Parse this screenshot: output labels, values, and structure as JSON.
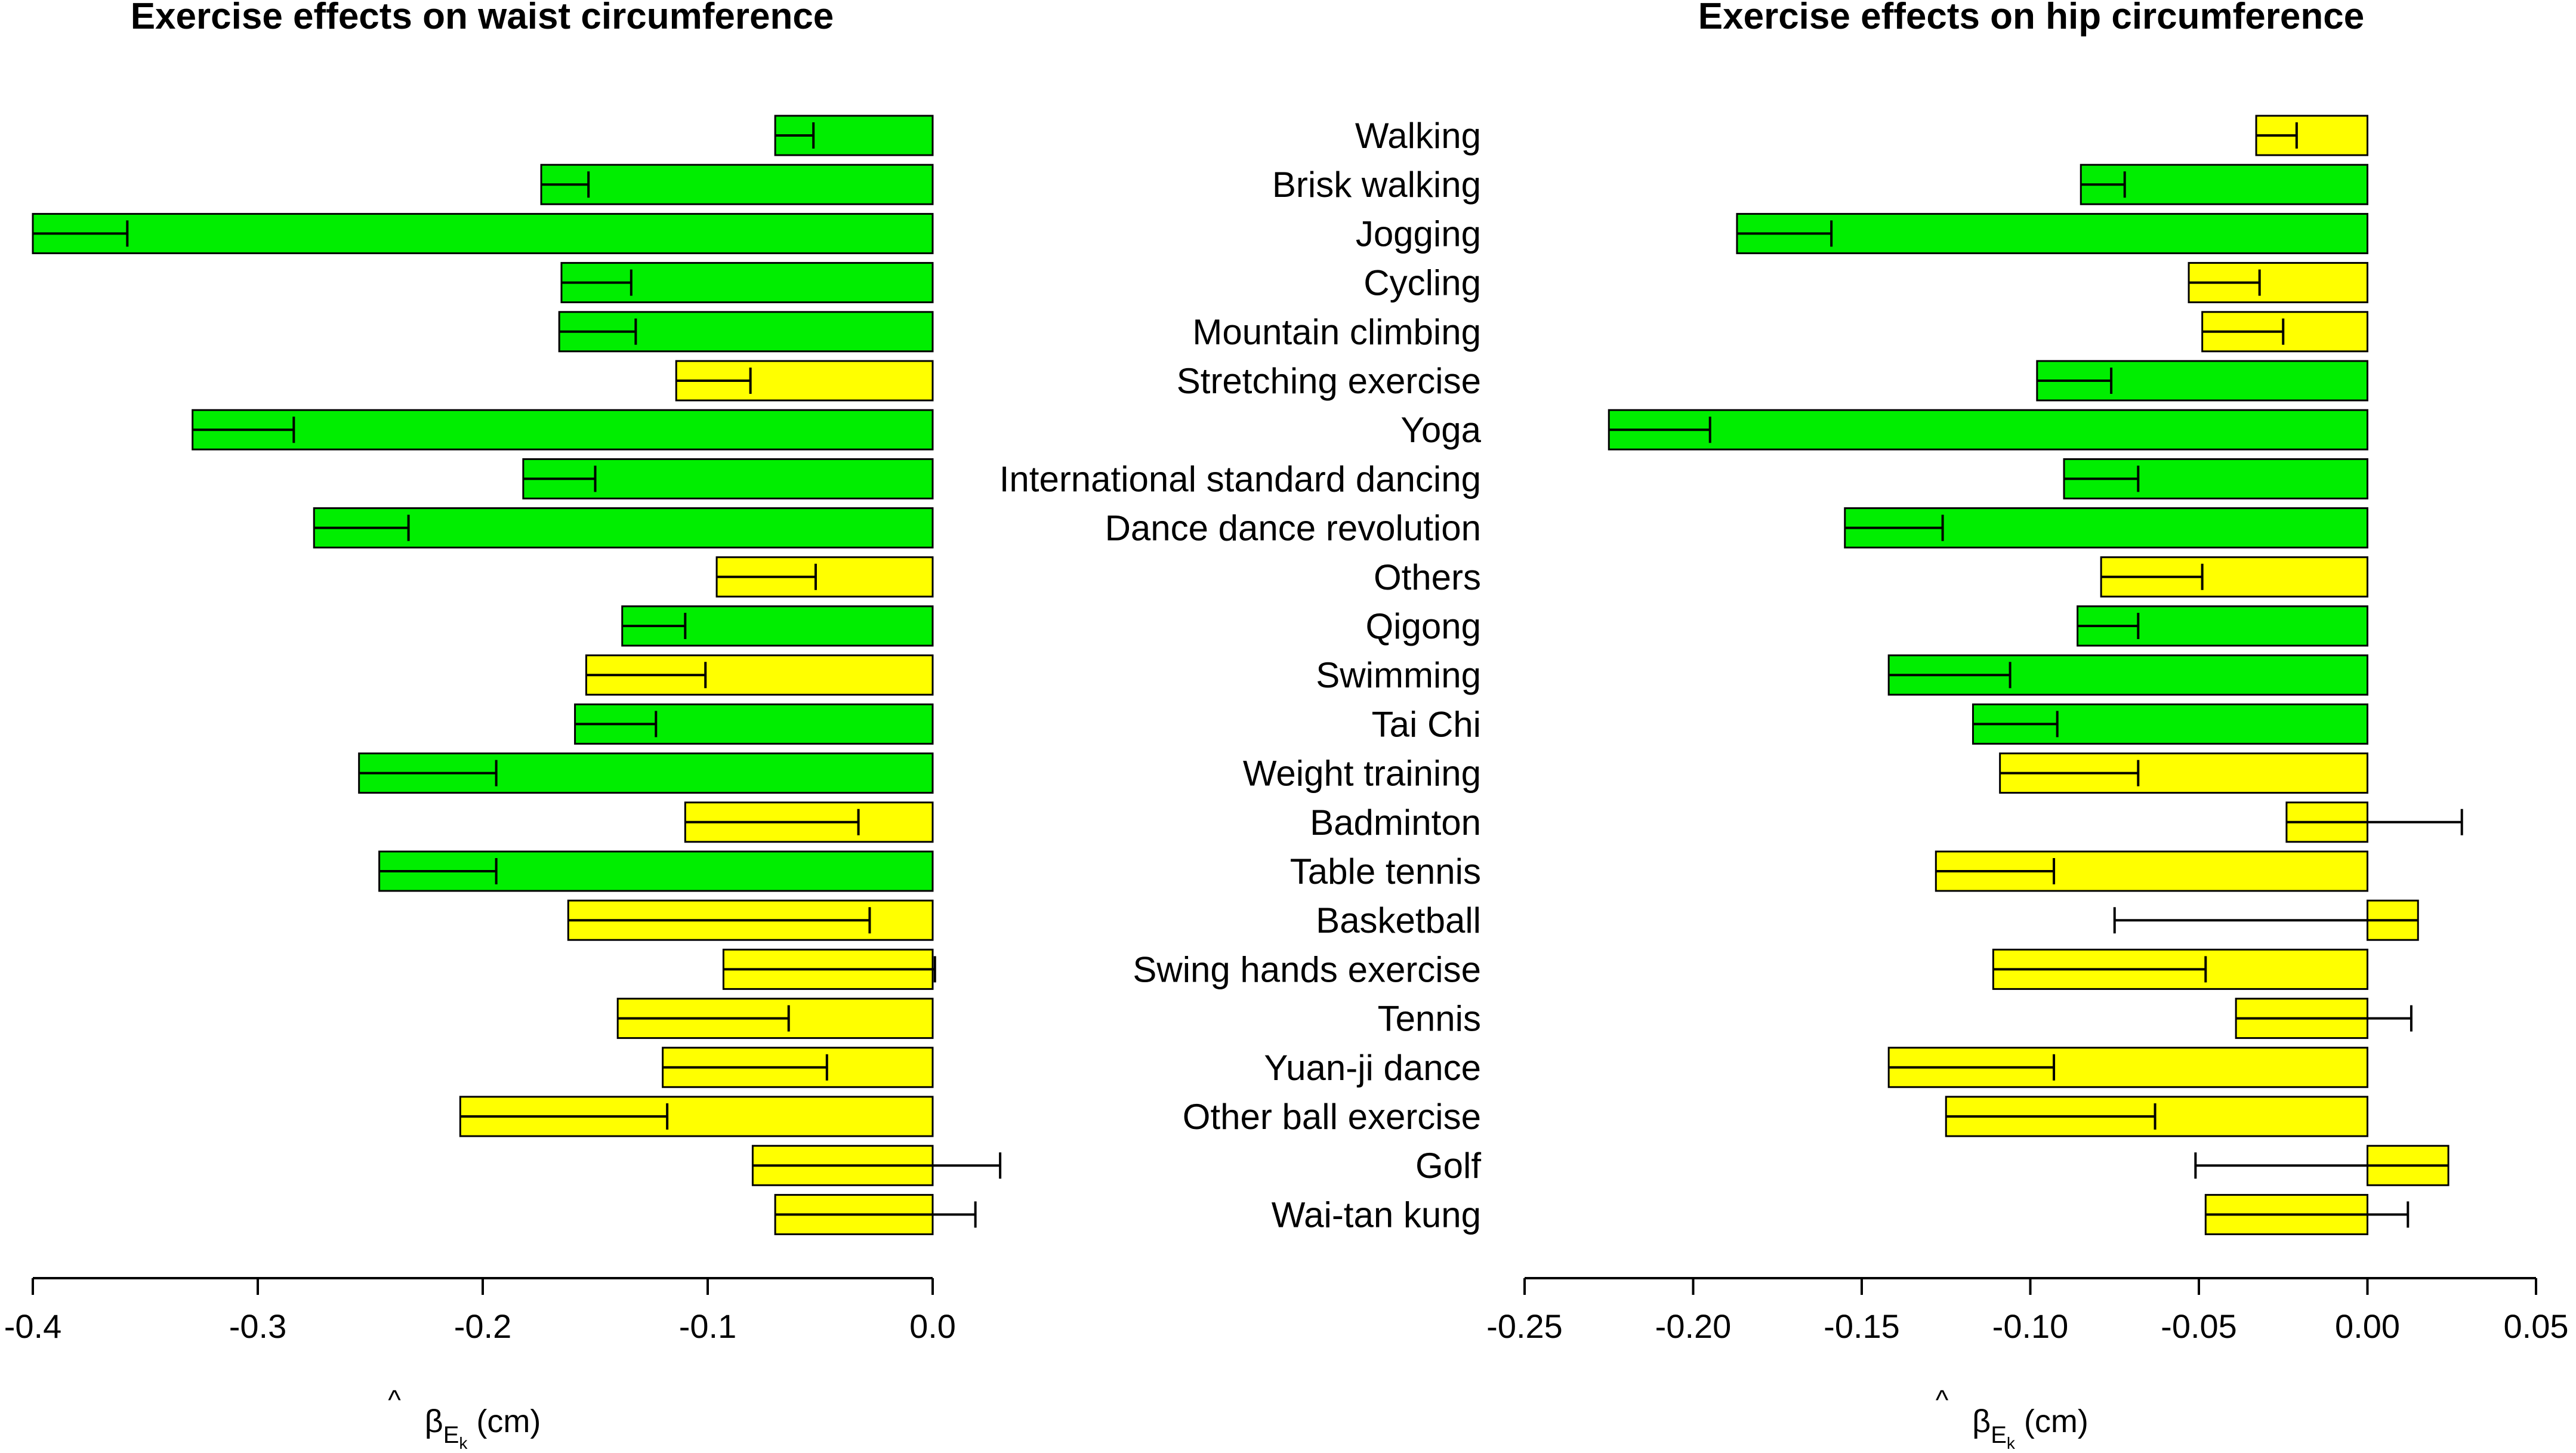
{
  "chart_data": [
    {
      "type": "bar",
      "orientation": "horizontal",
      "title": "Exercise effects on waist circumference",
      "xlabel": {
        "symbol": "β",
        "hat": "^",
        "subscript": "E",
        "subsubscript": "k",
        "unit": "(cm)"
      },
      "xlim": [
        -0.4,
        0.0
      ],
      "xticks": [
        -0.4,
        -0.3,
        -0.2,
        -0.1,
        0.0
      ],
      "xtick_labels": [
        "-0.4",
        "-0.3",
        "-0.2",
        "-0.1",
        "0.0"
      ],
      "bars": [
        {
          "category": "Walking",
          "value": -0.07,
          "error_end": -0.053,
          "color": "green"
        },
        {
          "category": "Brisk walking",
          "value": -0.174,
          "error_end": -0.153,
          "color": "green"
        },
        {
          "category": "Jogging",
          "value": -0.4,
          "error_end": -0.358,
          "color": "green"
        },
        {
          "category": "Cycling",
          "value": -0.165,
          "error_end": -0.134,
          "color": "green"
        },
        {
          "category": "Mountain climbing",
          "value": -0.166,
          "error_end": -0.132,
          "color": "green"
        },
        {
          "category": "Stretching exercise",
          "value": -0.114,
          "error_end": -0.081,
          "color": "yellow"
        },
        {
          "category": "Yoga",
          "value": -0.329,
          "error_end": -0.284,
          "color": "green"
        },
        {
          "category": "International standard dancing",
          "value": -0.182,
          "error_end": -0.15,
          "color": "green"
        },
        {
          "category": "Dance dance revolution",
          "value": -0.275,
          "error_end": -0.233,
          "color": "green"
        },
        {
          "category": "Others",
          "value": -0.096,
          "error_end": -0.052,
          "color": "yellow"
        },
        {
          "category": "Qigong",
          "value": -0.138,
          "error_end": -0.11,
          "color": "green"
        },
        {
          "category": "Swimming",
          "value": -0.154,
          "error_end": -0.101,
          "color": "yellow"
        },
        {
          "category": "Tai Chi",
          "value": -0.159,
          "error_end": -0.123,
          "color": "green"
        },
        {
          "category": "Weight training",
          "value": -0.255,
          "error_end": -0.194,
          "color": "green"
        },
        {
          "category": "Badminton",
          "value": -0.11,
          "error_end": -0.033,
          "color": "yellow"
        },
        {
          "category": "Table tennis",
          "value": -0.246,
          "error_end": -0.194,
          "color": "green"
        },
        {
          "category": "Basketball",
          "value": -0.162,
          "error_end": -0.028,
          "color": "yellow"
        },
        {
          "category": "Swing hands exercise",
          "value": -0.093,
          "error_end": 0.001,
          "color": "yellow"
        },
        {
          "category": "Tennis",
          "value": -0.14,
          "error_end": -0.064,
          "color": "yellow"
        },
        {
          "category": "Yuan-ji dance",
          "value": -0.12,
          "error_end": -0.047,
          "color": "yellow"
        },
        {
          "category": "Other ball exercise",
          "value": -0.21,
          "error_end": -0.118,
          "color": "yellow"
        },
        {
          "category": "Golf",
          "value": -0.08,
          "error_end": 0.03,
          "color": "yellow"
        },
        {
          "category": "Wai-tan kung",
          "value": -0.07,
          "error_end": 0.019,
          "color": "yellow"
        }
      ]
    },
    {
      "type": "bar",
      "orientation": "horizontal",
      "title": "Exercise effects on hip circumference",
      "xlabel": {
        "symbol": "β",
        "hat": "^",
        "subscript": "E",
        "subsubscript": "k",
        "unit": "(cm)"
      },
      "xlim": [
        -0.25,
        0.05
      ],
      "xticks": [
        -0.25,
        -0.2,
        -0.15,
        -0.1,
        -0.05,
        0.0,
        0.05
      ],
      "xtick_labels": [
        "-0.25",
        "-0.20",
        "-0.15",
        "-0.10",
        "-0.05",
        "0.00",
        "0.05"
      ],
      "bars": [
        {
          "category": "Walking",
          "value": -0.033,
          "error_end": -0.021,
          "color": "yellow"
        },
        {
          "category": "Brisk walking",
          "value": -0.085,
          "error_end": -0.072,
          "color": "green"
        },
        {
          "category": "Jogging",
          "value": -0.187,
          "error_end": -0.159,
          "color": "green"
        },
        {
          "category": "Cycling",
          "value": -0.053,
          "error_end": -0.032,
          "color": "yellow"
        },
        {
          "category": "Mountain climbing",
          "value": -0.049,
          "error_end": -0.025,
          "color": "yellow"
        },
        {
          "category": "Stretching exercise",
          "value": -0.098,
          "error_end": -0.076,
          "color": "green"
        },
        {
          "category": "Yoga",
          "value": -0.225,
          "error_end": -0.195,
          "color": "green"
        },
        {
          "category": "International standard dancing",
          "value": -0.09,
          "error_end": -0.068,
          "color": "green"
        },
        {
          "category": "Dance dance revolution",
          "value": -0.155,
          "error_end": -0.126,
          "color": "green"
        },
        {
          "category": "Others",
          "value": -0.079,
          "error_end": -0.049,
          "color": "yellow"
        },
        {
          "category": "Qigong",
          "value": -0.086,
          "error_end": -0.068,
          "color": "green"
        },
        {
          "category": "Swimming",
          "value": -0.142,
          "error_end": -0.106,
          "color": "green"
        },
        {
          "category": "Tai Chi",
          "value": -0.117,
          "error_end": -0.092,
          "color": "green"
        },
        {
          "category": "Weight training",
          "value": -0.109,
          "error_end": -0.068,
          "color": "yellow"
        },
        {
          "category": "Badminton",
          "value": -0.024,
          "error_end": 0.028,
          "color": "yellow"
        },
        {
          "category": "Table tennis",
          "value": -0.128,
          "error_end": -0.093,
          "color": "yellow"
        },
        {
          "category": "Basketball",
          "value": 0.015,
          "error_end": -0.075,
          "color": "yellow"
        },
        {
          "category": "Swing hands exercise",
          "value": -0.111,
          "error_end": -0.048,
          "color": "yellow"
        },
        {
          "category": "Tennis",
          "value": -0.039,
          "error_end": 0.013,
          "color": "yellow"
        },
        {
          "category": "Yuan-ji dance",
          "value": -0.142,
          "error_end": -0.093,
          "color": "yellow"
        },
        {
          "category": "Other ball exercise",
          "value": -0.125,
          "error_end": -0.063,
          "color": "yellow"
        },
        {
          "category": "Golf",
          "value": 0.024,
          "error_end": -0.051,
          "color": "yellow"
        },
        {
          "category": "Wai-tan kung",
          "value": -0.048,
          "error_end": 0.012,
          "color": "yellow"
        }
      ]
    }
  ],
  "colors": {
    "green": "#00ee00",
    "yellow": "#ffff00",
    "edge": "#000000"
  }
}
